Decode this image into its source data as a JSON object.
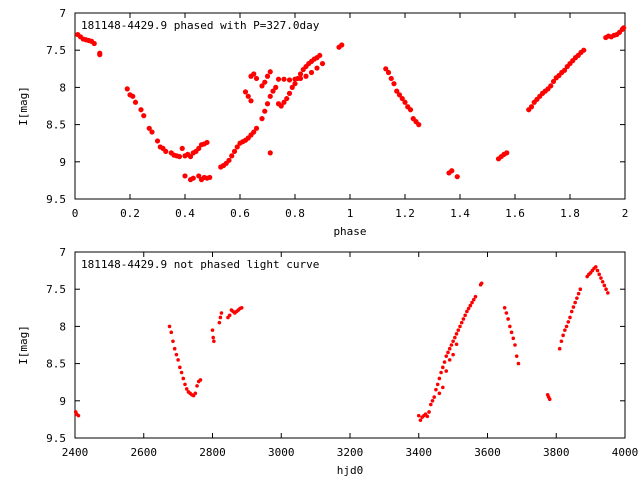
{
  "chart_data": [
    {
      "type": "scatter",
      "title": "181148-4429.9 phased with P=327.0day",
      "xlabel": "phase",
      "ylabel": "I[mag]",
      "xlim": [
        0,
        2
      ],
      "ylim": [
        9.5,
        7
      ],
      "y_inverted": true,
      "grid": false,
      "marker_color": "#ff0000",
      "xticks": [
        "0",
        "0.2",
        "0.4",
        "0.6",
        "0.8",
        "1",
        "1.2",
        "1.4",
        "1.6",
        "1.8",
        "2"
      ],
      "yticks": [
        "7",
        "7.5",
        "8",
        "8.5",
        "9",
        "9.5"
      ],
      "series": [
        {
          "points": [
            [
              0.01,
              7.29
            ],
            [
              0.02,
              7.32
            ],
            [
              0.03,
              7.35
            ],
            [
              0.04,
              7.36
            ],
            [
              0.05,
              7.37
            ],
            [
              0.06,
              7.38
            ],
            [
              0.07,
              7.41
            ],
            [
              0.09,
              7.54
            ],
            [
              0.09,
              7.56
            ],
            [
              0.19,
              8.02
            ],
            [
              0.2,
              8.1
            ],
            [
              0.21,
              8.12
            ],
            [
              0.22,
              8.2
            ],
            [
              0.24,
              8.3
            ],
            [
              0.25,
              8.38
            ],
            [
              0.27,
              8.55
            ],
            [
              0.28,
              8.6
            ],
            [
              0.3,
              8.72
            ],
            [
              0.31,
              8.8
            ],
            [
              0.32,
              8.82
            ],
            [
              0.33,
              8.86
            ],
            [
              0.35,
              8.88
            ],
            [
              0.36,
              8.91
            ],
            [
              0.37,
              8.92
            ],
            [
              0.38,
              8.93
            ],
            [
              0.39,
              8.82
            ],
            [
              0.4,
              8.92
            ],
            [
              0.41,
              8.9
            ],
            [
              0.42,
              8.93
            ],
            [
              0.43,
              8.88
            ],
            [
              0.44,
              8.86
            ],
            [
              0.45,
              8.82
            ],
            [
              0.46,
              8.77
            ],
            [
              0.47,
              8.76
            ],
            [
              0.48,
              8.74
            ],
            [
              0.4,
              9.19
            ],
            [
              0.42,
              9.24
            ],
            [
              0.43,
              9.22
            ],
            [
              0.45,
              9.19
            ],
            [
              0.46,
              9.24
            ],
            [
              0.47,
              9.21
            ],
            [
              0.48,
              9.22
            ],
            [
              0.49,
              9.21
            ],
            [
              0.53,
              9.07
            ],
            [
              0.54,
              9.05
            ],
            [
              0.55,
              9.02
            ],
            [
              0.56,
              8.98
            ],
            [
              0.57,
              8.92
            ],
            [
              0.58,
              8.86
            ],
            [
              0.59,
              8.8
            ],
            [
              0.6,
              8.75
            ],
            [
              0.61,
              8.73
            ],
            [
              0.62,
              8.71
            ],
            [
              0.63,
              8.68
            ],
            [
              0.64,
              8.64
            ],
            [
              0.65,
              8.6
            ],
            [
              0.66,
              8.55
            ],
            [
              0.68,
              8.42
            ],
            [
              0.69,
              8.32
            ],
            [
              0.7,
              8.22
            ],
            [
              0.71,
              8.88
            ],
            [
              0.71,
              8.12
            ],
            [
              0.72,
              8.05
            ],
            [
              0.73,
              8.0
            ],
            [
              0.62,
              8.06
            ],
            [
              0.63,
              8.12
            ],
            [
              0.64,
              8.18
            ],
            [
              0.64,
              7.85
            ],
            [
              0.65,
              7.82
            ],
            [
              0.66,
              7.88
            ],
            [
              0.68,
              7.98
            ],
            [
              0.69,
              7.93
            ],
            [
              0.7,
              7.85
            ],
            [
              0.71,
              7.79
            ],
            [
              0.74,
              8.22
            ],
            [
              0.75,
              8.25
            ],
            [
              0.76,
              8.2
            ],
            [
              0.77,
              8.15
            ],
            [
              0.78,
              8.08
            ],
            [
              0.79,
              8.0
            ],
            [
              0.8,
              7.95
            ],
            [
              0.81,
              7.88
            ],
            [
              0.82,
              7.82
            ],
            [
              0.83,
              7.76
            ],
            [
              0.84,
              7.72
            ],
            [
              0.85,
              7.68
            ],
            [
              0.86,
              7.65
            ],
            [
              0.87,
              7.62
            ],
            [
              0.88,
              7.6
            ],
            [
              0.89,
              7.57
            ],
            [
              0.74,
              7.89
            ],
            [
              0.76,
              7.89
            ],
            [
              0.78,
              7.9
            ],
            [
              0.8,
              7.89
            ],
            [
              0.82,
              7.88
            ],
            [
              0.84,
              7.85
            ],
            [
              0.86,
              7.8
            ],
            [
              0.88,
              7.74
            ],
            [
              0.9,
              7.68
            ],
            [
              0.96,
              7.46
            ],
            [
              0.97,
              7.43
            ],
            [
              1.13,
              7.75
            ],
            [
              1.14,
              7.8
            ],
            [
              1.15,
              7.88
            ],
            [
              1.16,
              7.95
            ],
            [
              1.17,
              8.05
            ],
            [
              1.18,
              8.1
            ],
            [
              1.19,
              8.15
            ],
            [
              1.2,
              8.2
            ],
            [
              1.21,
              8.26
            ],
            [
              1.22,
              8.3
            ],
            [
              1.23,
              8.42
            ],
            [
              1.24,
              8.46
            ],
            [
              1.25,
              8.5
            ],
            [
              1.36,
              9.15
            ],
            [
              1.37,
              9.12
            ],
            [
              1.39,
              9.2
            ],
            [
              1.54,
              8.96
            ],
            [
              1.55,
              8.93
            ],
            [
              1.56,
              8.9
            ],
            [
              1.57,
              8.88
            ],
            [
              1.65,
              8.3
            ],
            [
              1.66,
              8.26
            ],
            [
              1.67,
              8.2
            ],
            [
              1.68,
              8.16
            ],
            [
              1.69,
              8.12
            ],
            [
              1.7,
              8.08
            ],
            [
              1.71,
              8.05
            ],
            [
              1.72,
              8.02
            ],
            [
              1.73,
              7.98
            ],
            [
              1.74,
              7.92
            ],
            [
              1.75,
              7.87
            ],
            [
              1.76,
              7.84
            ],
            [
              1.77,
              7.8
            ],
            [
              1.78,
              7.77
            ],
            [
              1.79,
              7.72
            ],
            [
              1.8,
              7.68
            ],
            [
              1.81,
              7.64
            ],
            [
              1.82,
              7.6
            ],
            [
              1.83,
              7.57
            ],
            [
              1.84,
              7.53
            ],
            [
              1.85,
              7.5
            ],
            [
              1.93,
              7.33
            ],
            [
              1.94,
              7.31
            ],
            [
              1.95,
              7.32
            ],
            [
              1.96,
              7.3
            ],
            [
              1.97,
              7.29
            ],
            [
              1.98,
              7.26
            ],
            [
              1.99,
              7.22
            ],
            [
              1.995,
              7.2
            ]
          ]
        }
      ]
    },
    {
      "type": "scatter",
      "title": "181148-4429.9 not phased light curve",
      "xlabel": "hjd0",
      "ylabel": "I[mag]",
      "xlim": [
        2400,
        4000
      ],
      "ylim": [
        9.5,
        7
      ],
      "y_inverted": true,
      "grid": false,
      "marker_color": "#ff0000",
      "xticks": [
        "2400",
        "2600",
        "2800",
        "3000",
        "3200",
        "3400",
        "3600",
        "3800",
        "4000"
      ],
      "yticks": [
        "7",
        "7.5",
        "8",
        "8.5",
        "9",
        "9.5"
      ],
      "series": [
        {
          "points": [
            [
              2402,
              9.15
            ],
            [
              2405,
              9.18
            ],
            [
              2410,
              9.2
            ],
            [
              2675,
              8.0
            ],
            [
              2680,
              8.08
            ],
            [
              2685,
              8.2
            ],
            [
              2690,
              8.3
            ],
            [
              2695,
              8.38
            ],
            [
              2700,
              8.45
            ],
            [
              2705,
              8.55
            ],
            [
              2710,
              8.62
            ],
            [
              2715,
              8.7
            ],
            [
              2720,
              8.78
            ],
            [
              2725,
              8.84
            ],
            [
              2730,
              8.88
            ],
            [
              2735,
              8.9
            ],
            [
              2740,
              8.92
            ],
            [
              2745,
              8.93
            ],
            [
              2750,
              8.9
            ],
            [
              2755,
              8.8
            ],
            [
              2760,
              8.74
            ],
            [
              2765,
              8.72
            ],
            [
              2800,
              8.05
            ],
            [
              2802,
              8.15
            ],
            [
              2804,
              8.2
            ],
            [
              2820,
              7.95
            ],
            [
              2823,
              7.88
            ],
            [
              2826,
              7.82
            ],
            [
              2845,
              7.88
            ],
            [
              2850,
              7.85
            ],
            [
              2855,
              7.78
            ],
            [
              2860,
              7.8
            ],
            [
              2865,
              7.82
            ],
            [
              2870,
              7.8
            ],
            [
              2875,
              7.78
            ],
            [
              2880,
              7.76
            ],
            [
              2885,
              7.75
            ],
            [
              3400,
              9.2
            ],
            [
              3405,
              9.26
            ],
            [
              3410,
              9.22
            ],
            [
              3415,
              9.2
            ],
            [
              3420,
              9.18
            ],
            [
              3425,
              9.21
            ],
            [
              3430,
              9.15
            ],
            [
              3435,
              9.05
            ],
            [
              3440,
              9.0
            ],
            [
              3445,
              8.95
            ],
            [
              3450,
              8.85
            ],
            [
              3455,
              8.78
            ],
            [
              3460,
              8.7
            ],
            [
              3465,
              8.62
            ],
            [
              3470,
              8.55
            ],
            [
              3475,
              8.48
            ],
            [
              3480,
              8.4
            ],
            [
              3485,
              8.35
            ],
            [
              3490,
              8.3
            ],
            [
              3495,
              8.25
            ],
            [
              3500,
              8.2
            ],
            [
              3505,
              8.15
            ],
            [
              3510,
              8.1
            ],
            [
              3515,
              8.05
            ],
            [
              3520,
              8.0
            ],
            [
              3525,
              7.95
            ],
            [
              3530,
              7.9
            ],
            [
              3535,
              7.85
            ],
            [
              3540,
              7.8
            ],
            [
              3545,
              7.76
            ],
            [
              3550,
              7.72
            ],
            [
              3555,
              7.68
            ],
            [
              3560,
              7.64
            ],
            [
              3565,
              7.6
            ],
            [
              3460,
              8.9
            ],
            [
              3470,
              8.82
            ],
            [
              3480,
              8.6
            ],
            [
              3490,
              8.45
            ],
            [
              3500,
              8.38
            ],
            [
              3510,
              8.24
            ],
            [
              3580,
              7.44
            ],
            [
              3583,
              7.42
            ],
            [
              3650,
              7.75
            ],
            [
              3655,
              7.82
            ],
            [
              3660,
              7.9
            ],
            [
              3665,
              8.0
            ],
            [
              3670,
              8.08
            ],
            [
              3675,
              8.16
            ],
            [
              3680,
              8.25
            ],
            [
              3685,
              8.4
            ],
            [
              3690,
              8.5
            ],
            [
              3775,
              8.92
            ],
            [
              3778,
              8.95
            ],
            [
              3781,
              8.98
            ],
            [
              3810,
              8.3
            ],
            [
              3815,
              8.2
            ],
            [
              3820,
              8.12
            ],
            [
              3825,
              8.05
            ],
            [
              3830,
              8.0
            ],
            [
              3835,
              7.94
            ],
            [
              3840,
              7.88
            ],
            [
              3845,
              7.8
            ],
            [
              3850,
              7.74
            ],
            [
              3855,
              7.68
            ],
            [
              3860,
              7.62
            ],
            [
              3865,
              7.56
            ],
            [
              3870,
              7.5
            ],
            [
              3890,
              7.33
            ],
            [
              3895,
              7.3
            ],
            [
              3900,
              7.28
            ],
            [
              3905,
              7.25
            ],
            [
              3910,
              7.22
            ],
            [
              3915,
              7.2
            ],
            [
              3920,
              7.25
            ],
            [
              3925,
              7.3
            ],
            [
              3930,
              7.35
            ],
            [
              3935,
              7.4
            ],
            [
              3940,
              7.45
            ],
            [
              3945,
              7.5
            ],
            [
              3950,
              7.55
            ]
          ]
        }
      ]
    }
  ]
}
